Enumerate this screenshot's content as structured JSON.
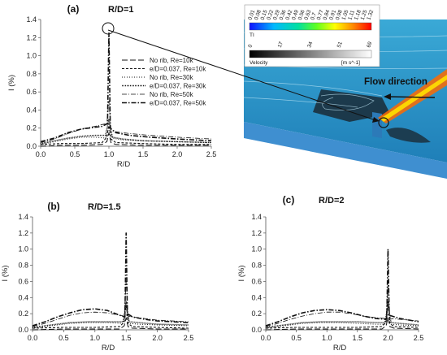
{
  "panels": [
    {
      "label": "(a)",
      "title": "R/D=1"
    },
    {
      "label": "(b)",
      "title": "R/D=1.5"
    },
    {
      "label": "(c)",
      "title": "R/D=2"
    }
  ],
  "insert": {
    "flow_label": "Flow direction",
    "ti_label": "TI",
    "ti_ticks": [
      "0.01",
      "0.08",
      "0.15",
      "0.22",
      "0.29",
      "0.36",
      "0.42",
      "0.49",
      "0.56",
      "0.63",
      "0.7",
      "0.77",
      "0.84",
      "0.91",
      "0.98",
      "1.05",
      "1.11",
      "1.18",
      "1.25",
      "1.32"
    ],
    "vel_label": "Velocity",
    "vel_unit": "[m s^-1]",
    "vel_ticks": [
      "0",
      "17",
      "34",
      "51",
      "69"
    ]
  },
  "chart_data": [
    {
      "type": "line",
      "panel": "(a)",
      "title": "R/D=1",
      "xlabel": "R/D",
      "ylabel": "I (%)",
      "xlim": [
        0.0,
        2.5
      ],
      "ylim": [
        0.0,
        1.4
      ],
      "xticks": [
        "0.0",
        "0.5",
        "1.0",
        "1.5",
        "2.0",
        "2.5"
      ],
      "yticks": [
        "0.0",
        "0.2",
        "0.4",
        "0.6",
        "0.8",
        "1.0",
        "1.2",
        "1.4"
      ],
      "legend_position": "right",
      "series": [
        {
          "name": "No rib, Re=10k",
          "style": "long-dash",
          "x": [
            0.0,
            0.3,
            0.6,
            0.9,
            0.97,
            1.0,
            1.03,
            1.1,
            1.5,
            2.0,
            2.5
          ],
          "y": [
            0.0,
            0.01,
            0.01,
            0.02,
            0.05,
            0.15,
            0.04,
            0.02,
            0.01,
            0.01,
            0.01
          ]
        },
        {
          "name": "e/D=0.037, Re=10k",
          "style": "short-dash",
          "x": [
            0.0,
            0.3,
            0.6,
            0.9,
            0.97,
            1.0,
            1.03,
            1.1,
            1.5,
            2.0,
            2.5
          ],
          "y": [
            0.02,
            0.03,
            0.03,
            0.04,
            0.1,
            0.25,
            0.08,
            0.04,
            0.03,
            0.02,
            0.02
          ]
        },
        {
          "name": "No rib, Re=30k",
          "style": "dotted",
          "x": [
            0.0,
            0.2,
            0.4,
            0.6,
            0.8,
            0.95,
            1.0,
            1.05,
            1.2,
            1.5,
            2.0,
            2.5
          ],
          "y": [
            0.02,
            0.05,
            0.08,
            0.1,
            0.1,
            0.09,
            0.2,
            0.09,
            0.07,
            0.06,
            0.05,
            0.04
          ]
        },
        {
          "name": "e/D=0.037, Re=30k",
          "style": "dense-dot",
          "x": [
            0.0,
            0.2,
            0.4,
            0.6,
            0.8,
            0.95,
            1.0,
            1.05,
            1.2,
            1.5,
            2.0,
            2.5
          ],
          "y": [
            0.03,
            0.06,
            0.09,
            0.11,
            0.12,
            0.12,
            0.3,
            0.1,
            0.08,
            0.06,
            0.05,
            0.04
          ]
        },
        {
          "name": "No rib, Re=50k",
          "style": "dash-dot",
          "x": [
            0.0,
            0.2,
            0.4,
            0.6,
            0.8,
            0.9,
            0.97,
            1.0,
            1.03,
            1.1,
            1.3,
            1.6,
            2.0,
            2.5
          ],
          "y": [
            0.04,
            0.08,
            0.14,
            0.19,
            0.22,
            0.24,
            0.25,
            0.5,
            0.18,
            0.16,
            0.14,
            0.12,
            0.1,
            0.08
          ]
        },
        {
          "name": "e/D=0.037, Re=50k",
          "style": "dash-dot-heavy",
          "x": [
            0.0,
            0.2,
            0.4,
            0.6,
            0.8,
            0.9,
            0.98,
            1.0,
            1.02,
            1.1,
            1.3,
            1.6,
            2.0,
            2.5
          ],
          "y": [
            0.05,
            0.09,
            0.15,
            0.19,
            0.21,
            0.22,
            0.25,
            1.25,
            0.2,
            0.15,
            0.12,
            0.1,
            0.08,
            0.06
          ]
        }
      ]
    },
    {
      "type": "line",
      "panel": "(b)",
      "title": "R/D=1.5",
      "xlabel": "R/D",
      "ylabel": "I (%)",
      "xlim": [
        0.0,
        2.5
      ],
      "ylim": [
        0.0,
        1.4
      ],
      "xticks": [
        "0.0",
        "0.5",
        "1.0",
        "1.5",
        "2.0",
        "2.5"
      ],
      "yticks": [
        "0.0",
        "0.2",
        "0.4",
        "0.6",
        "0.8",
        "1.0",
        "1.2",
        "1.4"
      ],
      "series": [
        {
          "style": "long-dash",
          "x": [
            0.0,
            0.5,
            1.0,
            1.4,
            1.47,
            1.5,
            1.53,
            1.6,
            2.0,
            2.5
          ],
          "y": [
            0.0,
            0.01,
            0.01,
            0.01,
            0.05,
            0.15,
            0.04,
            0.02,
            0.01,
            0.01
          ]
        },
        {
          "style": "short-dash",
          "x": [
            0.0,
            0.5,
            1.0,
            1.4,
            1.47,
            1.5,
            1.53,
            1.6,
            2.0,
            2.5
          ],
          "y": [
            0.02,
            0.03,
            0.03,
            0.04,
            0.1,
            0.35,
            0.08,
            0.04,
            0.03,
            0.02
          ]
        },
        {
          "style": "dotted",
          "x": [
            0.0,
            0.3,
            0.6,
            0.9,
            1.2,
            1.45,
            1.5,
            1.55,
            1.7,
            2.0,
            2.5
          ],
          "y": [
            0.02,
            0.05,
            0.08,
            0.09,
            0.09,
            0.08,
            0.2,
            0.08,
            0.07,
            0.06,
            0.05
          ]
        },
        {
          "style": "dense-dot",
          "x": [
            0.0,
            0.3,
            0.6,
            0.9,
            1.2,
            1.45,
            1.5,
            1.55,
            1.7,
            2.0,
            2.5
          ],
          "y": [
            0.03,
            0.06,
            0.09,
            0.1,
            0.1,
            0.1,
            0.3,
            0.1,
            0.09,
            0.07,
            0.06
          ]
        },
        {
          "style": "dash-dot",
          "x": [
            0.0,
            0.2,
            0.4,
            0.6,
            0.8,
            1.0,
            1.2,
            1.4,
            1.47,
            1.5,
            1.53,
            1.6,
            1.8,
            2.0,
            2.5
          ],
          "y": [
            0.04,
            0.08,
            0.13,
            0.18,
            0.21,
            0.22,
            0.21,
            0.18,
            0.17,
            0.6,
            0.17,
            0.16,
            0.14,
            0.12,
            0.1
          ]
        },
        {
          "style": "dash-dot-heavy",
          "x": [
            0.0,
            0.2,
            0.4,
            0.6,
            0.8,
            1.0,
            1.2,
            1.4,
            1.48,
            1.5,
            1.52,
            1.6,
            1.8,
            2.0,
            2.5
          ],
          "y": [
            0.05,
            0.1,
            0.16,
            0.21,
            0.25,
            0.26,
            0.24,
            0.18,
            0.16,
            1.2,
            0.2,
            0.16,
            0.13,
            0.11,
            0.09
          ]
        }
      ]
    },
    {
      "type": "line",
      "panel": "(c)",
      "title": "R/D=2",
      "xlabel": "R/D",
      "ylabel": "I (%)",
      "xlim": [
        0.0,
        2.5
      ],
      "ylim": [
        0.0,
        1.4
      ],
      "xticks": [
        "0.0",
        "0.5",
        "1.0",
        "1.5",
        "2.0",
        "2.5"
      ],
      "yticks": [
        "0.0",
        "0.2",
        "0.4",
        "0.6",
        "0.8",
        "1.0",
        "1.2",
        "1.4"
      ],
      "series": [
        {
          "style": "long-dash",
          "x": [
            0.0,
            0.5,
            1.0,
            1.5,
            1.9,
            1.97,
            2.0,
            2.03,
            2.1,
            2.5
          ],
          "y": [
            0.0,
            0.01,
            0.01,
            0.01,
            0.01,
            0.05,
            0.15,
            0.04,
            0.02,
            0.01
          ]
        },
        {
          "style": "short-dash",
          "x": [
            0.0,
            0.5,
            1.0,
            1.5,
            1.9,
            1.97,
            2.0,
            2.03,
            2.1,
            2.5
          ],
          "y": [
            0.02,
            0.03,
            0.03,
            0.03,
            0.04,
            0.1,
            0.35,
            0.08,
            0.04,
            0.03
          ]
        },
        {
          "style": "dotted",
          "x": [
            0.0,
            0.3,
            0.6,
            0.9,
            1.2,
            1.5,
            1.8,
            1.95,
            2.0,
            2.05,
            2.2,
            2.5
          ],
          "y": [
            0.02,
            0.05,
            0.08,
            0.09,
            0.09,
            0.08,
            0.07,
            0.07,
            0.2,
            0.07,
            0.06,
            0.05
          ]
        },
        {
          "style": "dense-dot",
          "x": [
            0.0,
            0.3,
            0.6,
            0.9,
            1.2,
            1.5,
            1.8,
            1.95,
            2.0,
            2.05,
            2.2,
            2.5
          ],
          "y": [
            0.03,
            0.06,
            0.09,
            0.1,
            0.1,
            0.1,
            0.09,
            0.09,
            0.3,
            0.09,
            0.08,
            0.06
          ]
        },
        {
          "style": "dash-dot",
          "x": [
            0.0,
            0.2,
            0.4,
            0.6,
            0.8,
            1.0,
            1.2,
            1.4,
            1.6,
            1.8,
            1.97,
            2.0,
            2.03,
            2.2,
            2.5
          ],
          "y": [
            0.04,
            0.08,
            0.13,
            0.17,
            0.2,
            0.22,
            0.22,
            0.2,
            0.17,
            0.15,
            0.14,
            0.55,
            0.14,
            0.13,
            0.11
          ]
        },
        {
          "style": "dash-dot-heavy",
          "x": [
            0.0,
            0.2,
            0.4,
            0.6,
            0.8,
            1.0,
            1.2,
            1.4,
            1.6,
            1.8,
            1.98,
            2.0,
            2.02,
            2.2,
            2.5
          ],
          "y": [
            0.05,
            0.1,
            0.16,
            0.21,
            0.24,
            0.25,
            0.24,
            0.21,
            0.17,
            0.14,
            0.13,
            1.0,
            0.18,
            0.14,
            0.1
          ]
        }
      ]
    }
  ]
}
